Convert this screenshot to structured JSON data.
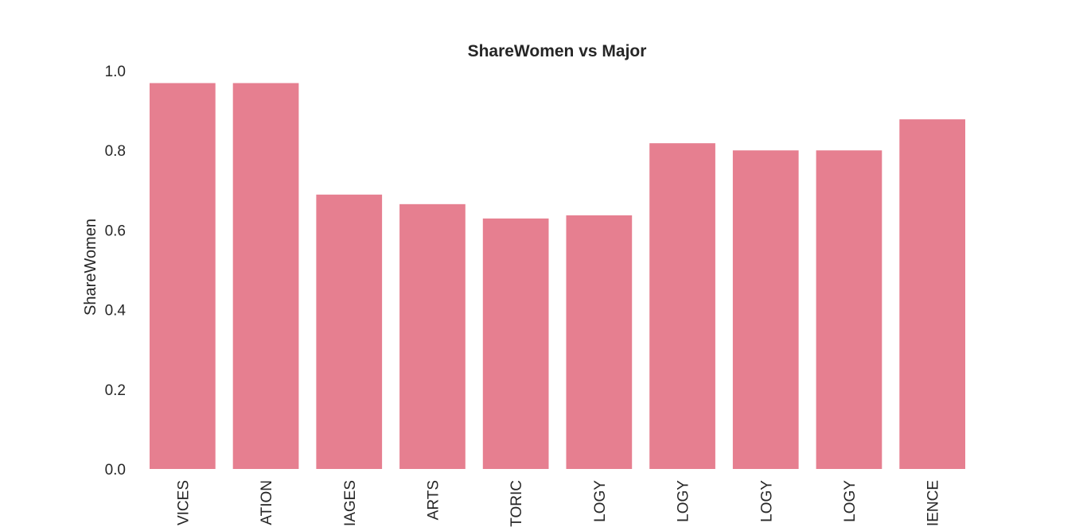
{
  "chart_data": {
    "type": "bar",
    "title": "ShareWomen vs Major",
    "xlabel": "",
    "ylabel": "ShareWomen",
    "ylim": [
      0,
      1.0
    ],
    "yticks": [
      "0.0",
      "0.2",
      "0.4",
      "0.6",
      "0.8",
      "1.0"
    ],
    "grid": false,
    "bar_color": "#e67f90",
    "categories": [
      "VICES",
      "ATION",
      "IAGES",
      "ARTS",
      "TORIC",
      "LOGY",
      "LOGY",
      "LOGY",
      "LOGY",
      "IENCE"
    ],
    "values": [
      0.969,
      0.969,
      0.689,
      0.665,
      0.629,
      0.637,
      0.818,
      0.8,
      0.8,
      0.878
    ]
  }
}
